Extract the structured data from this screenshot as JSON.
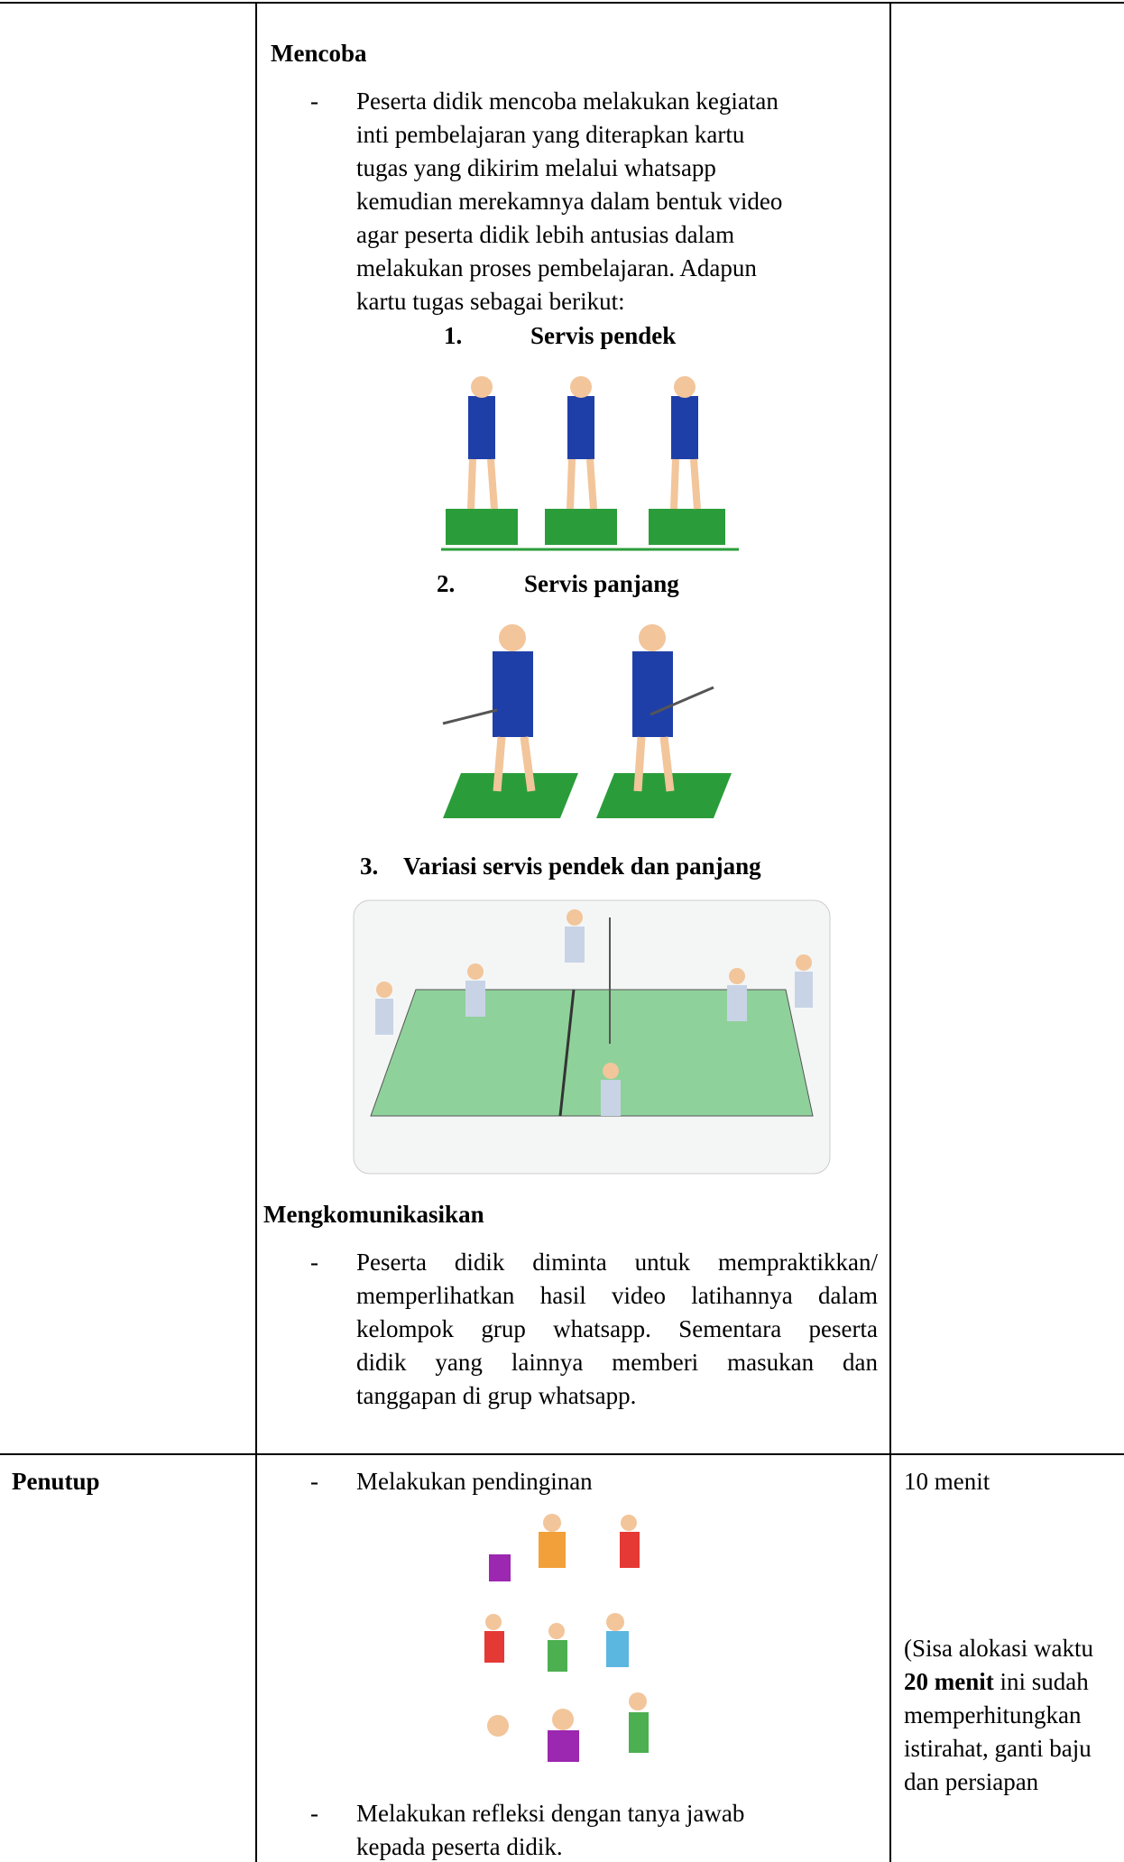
{
  "activity_row": {
    "mencoba": {
      "heading": "Mencoba",
      "bullet": "-",
      "lines": [
        "Peserta didik mencoba melakukan kegiatan",
        "inti pembelajaran yang diterapkan kartu",
        "tugas yang dikirim melalui whatsapp",
        "kemudian merekamnya dalam bentuk video",
        "agar peserta didik lebih antusias dalam",
        "melakukan proses pembelajaran. Adapun",
        "kartu tugas sebagai berikut:"
      ],
      "tasks": [
        {
          "number": "1.",
          "title": "Servis pendek"
        },
        {
          "number": "2.",
          "title": "Servis panjang"
        },
        {
          "number": "3.",
          "title": "Variasi servis pendek dan panjang"
        }
      ]
    },
    "mengkomunikasikan": {
      "heading": "Mengkomunikasikan",
      "bullet": "-",
      "lines": [
        "Peserta didik diminta untuk mempraktikkan/",
        "memperlihatkan hasil video latihannya dalam",
        "kelompok grup whatsapp. Sementara peserta",
        "didik yang lainnya memberi masukan dan",
        "tanggapan di grup whatsapp."
      ]
    }
  },
  "closing_row": {
    "stage": "Penutup",
    "items": [
      {
        "bullet": "-",
        "lines": [
          "Melakukan pendinginan"
        ]
      },
      {
        "bullet": "-",
        "lines": [
          "Melakukan refleksi dengan tanya jawab",
          "kepada peserta didik."
        ]
      }
    ],
    "time": "10 menit",
    "note": [
      "(Sisa alokasi waktu ",
      "20 menit",
      " ini sudah memperhitungkan istirahat, ganti baju dan persiapan"
    ]
  }
}
